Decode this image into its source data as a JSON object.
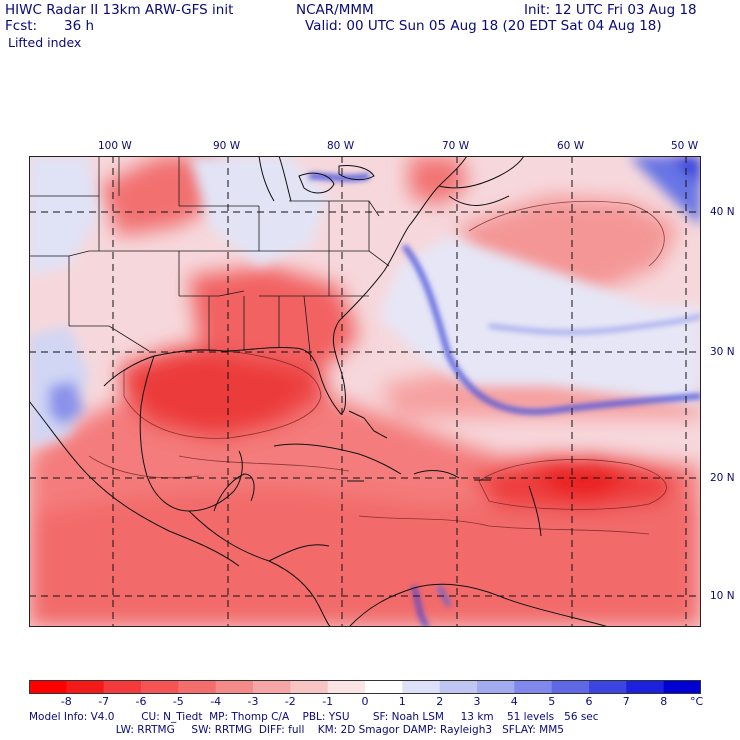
{
  "header": {
    "title": "HIWC Radar II 13km ARW-GFS init",
    "org": "NCAR/MMM",
    "init": "Init: 12 UTC Fri 03 Aug 18",
    "fcst_label": "Fcst:",
    "fcst_value": "36 h",
    "valid": "Valid: 00 UTC Sun 05 Aug 18 (20 EDT Sat 04 Aug 18)",
    "field": "Lifted index"
  },
  "map": {
    "lon_labels": [
      "100 W",
      "90 W",
      "80 W",
      "70 W",
      "60 W",
      "50 W"
    ],
    "lat_labels": [
      "40 N",
      "30 N",
      "20 N",
      "10 N"
    ],
    "colors": {
      "border": "#1a1a1a",
      "grid": "#111111",
      "neutral": "#f8f2f4",
      "blue_band": "#4a52dc",
      "light_blue": "#d6dcf6",
      "red_mid": "#f46a6a",
      "red_light": "#f7a3a3",
      "red_deep": "#ef2a2a"
    }
  },
  "colorbar": {
    "unit": "°C",
    "labels": [
      "-8",
      "-7",
      "-6",
      "-5",
      "-4",
      "-3",
      "-2",
      "-1",
      "0",
      "1",
      "2",
      "3",
      "4",
      "5",
      "6",
      "7",
      "8"
    ],
    "colors": [
      "#ff0000",
      "#f41a1a",
      "#f43a3a",
      "#f45454",
      "#f46e6e",
      "#f48a8a",
      "#f6a6a6",
      "#f8c4c4",
      "#fbe4e4",
      "#ffffff",
      "#dce0f8",
      "#c0c6f4",
      "#a2aaf0",
      "#8088ec",
      "#6068e6",
      "#3c44e2",
      "#1c22dc",
      "#0000d2"
    ]
  },
  "info": {
    "line1": "Model Info: V4.0        CU: N_Tiedt  MP: Thomp C/A    PBL: YSU       SF: Noah LSM     13 km    51 levels   56 sec",
    "line2": "                          LW: RRTMG     SW: RRTMG  DIFF: full    KM: 2D Smagor DAMP: Rayleigh3   SFLAY: MM5"
  }
}
